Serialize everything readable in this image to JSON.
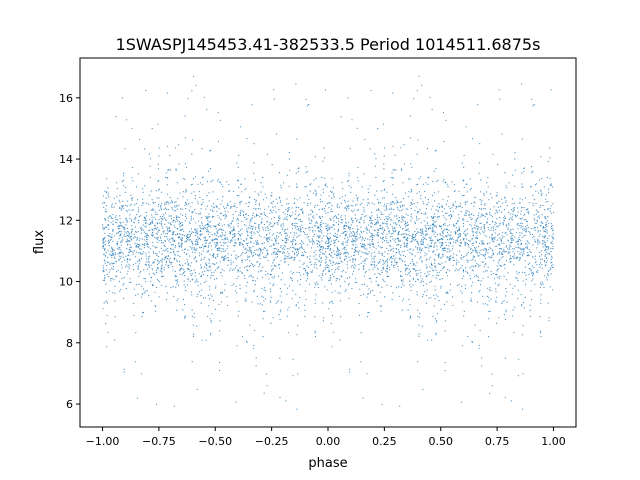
{
  "chart_data": {
    "type": "scatter",
    "title": "1SWASPJ145453.41-382533.5 Period 1014511.6875s",
    "xlabel": "phase",
    "ylabel": "flux",
    "xlim": [
      -1.1,
      1.1
    ],
    "ylim": [
      5.25,
      17.3
    ],
    "xticks": [
      -1.0,
      -0.75,
      -0.5,
      -0.25,
      0.0,
      0.25,
      0.5,
      0.75,
      1.0
    ],
    "xtick_labels": [
      "−1.00",
      "−0.75",
      "−0.50",
      "−0.25",
      "0.00",
      "0.25",
      "0.50",
      "0.75",
      "1.00"
    ],
    "yticks": [
      6,
      8,
      10,
      12,
      14,
      16
    ],
    "ytick_labels": [
      "6",
      "8",
      "10",
      "12",
      "14",
      "16"
    ],
    "grid": false,
    "point_color": "#1f77b4",
    "series_summary": {
      "x_range": [
        -1.0,
        1.0
      ],
      "flux_center": 11.3,
      "flux_core_range": [
        9.5,
        13.2
      ],
      "flux_extreme_range": [
        5.8,
        16.7
      ],
      "repeats_every_phase": 1.0
    }
  }
}
